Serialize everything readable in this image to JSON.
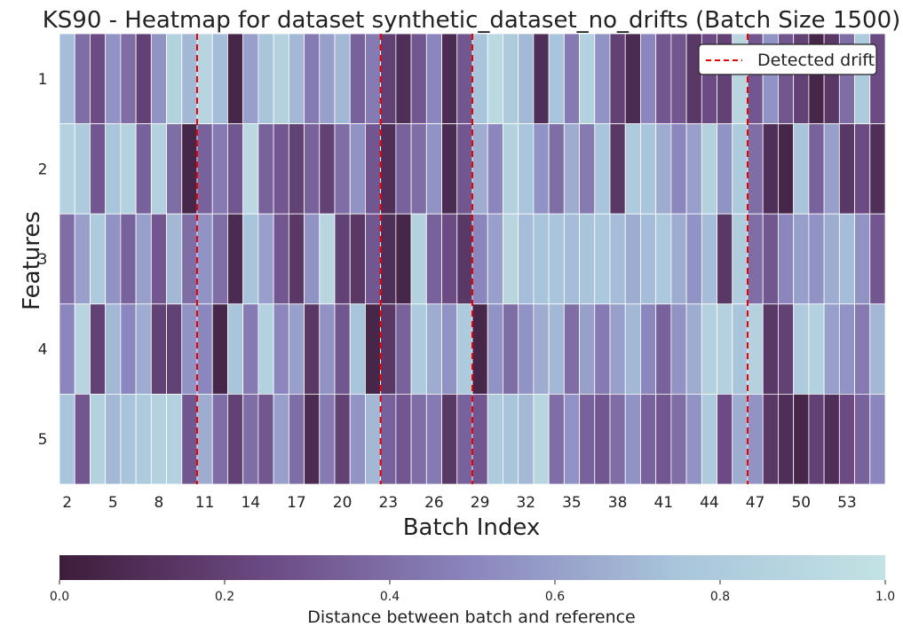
{
  "chart_data": {
    "type": "heatmap",
    "title": "KS90 - Heatmap for dataset synthetic_dataset_no_drifts (Batch Size 1500)",
    "xlabel": "Batch Index",
    "ylabel": "Features",
    "x_categories": [
      2,
      3,
      4,
      5,
      6,
      7,
      8,
      9,
      10,
      11,
      12,
      13,
      14,
      15,
      16,
      17,
      18,
      19,
      20,
      21,
      22,
      23,
      24,
      25,
      26,
      27,
      28,
      29,
      30,
      31,
      32,
      33,
      34,
      35,
      36,
      37,
      38,
      39,
      40,
      41,
      42,
      43,
      44,
      45,
      46,
      47,
      48,
      49,
      50,
      51,
      52,
      53,
      54,
      55
    ],
    "x_tick_labels": [
      "2",
      "5",
      "8",
      "11",
      "14",
      "17",
      "20",
      "23",
      "26",
      "29",
      "32",
      "35",
      "38",
      "41",
      "44",
      "47",
      "50",
      "53"
    ],
    "y_categories": [
      "1",
      "2",
      "3",
      "4",
      "5"
    ],
    "values": [
      [
        0.72,
        0.4,
        0.25,
        0.55,
        0.4,
        0.2,
        0.55,
        0.85,
        0.7,
        0.88,
        0.72,
        0.05,
        0.6,
        0.75,
        0.85,
        0.7,
        0.45,
        0.6,
        0.7,
        0.35,
        0.45,
        0.2,
        0.1,
        0.3,
        0.5,
        0.08,
        0.3,
        0.75,
        0.92,
        0.8,
        0.7,
        0.1,
        0.75,
        0.45,
        0.85,
        0.55,
        0.2,
        0.08,
        0.5,
        0.3,
        0.3,
        0.15,
        0.25,
        0.2,
        0.9,
        0.3,
        0.55,
        0.3,
        0.2,
        0.05,
        0.15,
        0.4,
        0.8,
        0.25
      ],
      [
        0.85,
        0.8,
        0.3,
        0.75,
        0.85,
        0.35,
        0.85,
        0.4,
        0.05,
        0.35,
        0.45,
        0.3,
        0.92,
        0.35,
        0.3,
        0.2,
        0.35,
        0.2,
        0.4,
        0.55,
        0.3,
        0.1,
        0.35,
        0.4,
        0.55,
        0.08,
        0.3,
        0.65,
        0.5,
        0.85,
        0.75,
        0.55,
        0.4,
        0.65,
        0.45,
        0.75,
        0.15,
        0.8,
        0.75,
        0.65,
        0.5,
        0.6,
        0.85,
        0.55,
        0.8,
        0.4,
        0.1,
        0.05,
        0.75,
        0.35,
        0.6,
        0.15,
        0.25,
        0.1
      ],
      [
        0.4,
        0.6,
        0.8,
        0.55,
        0.35,
        0.6,
        0.3,
        0.7,
        0.4,
        0.55,
        0.4,
        0.08,
        0.75,
        0.6,
        0.3,
        0.15,
        0.55,
        0.9,
        0.2,
        0.15,
        0.3,
        0.1,
        0.05,
        0.85,
        0.35,
        0.25,
        0.15,
        0.5,
        0.6,
        0.9,
        0.72,
        0.75,
        0.75,
        0.72,
        0.75,
        0.78,
        0.72,
        0.65,
        0.72,
        0.78,
        0.65,
        0.55,
        0.72,
        0.15,
        0.82,
        0.4,
        0.3,
        0.5,
        0.6,
        0.55,
        0.65,
        0.72,
        0.55,
        0.3
      ],
      [
        0.5,
        0.88,
        0.2,
        0.7,
        0.5,
        0.65,
        0.2,
        0.2,
        0.55,
        0.5,
        0.05,
        0.75,
        0.45,
        0.85,
        0.5,
        0.6,
        0.15,
        0.55,
        0.3,
        0.75,
        0.05,
        0.15,
        0.35,
        0.8,
        0.65,
        0.55,
        0.8,
        0.05,
        0.55,
        0.4,
        0.55,
        0.65,
        0.7,
        0.4,
        0.6,
        0.45,
        0.6,
        0.7,
        0.5,
        0.35,
        0.55,
        0.65,
        0.85,
        0.85,
        0.75,
        0.85,
        0.15,
        0.2,
        0.8,
        0.85,
        0.6,
        0.55,
        0.45,
        0.7
      ],
      [
        0.75,
        0.3,
        0.85,
        0.7,
        0.75,
        0.8,
        0.85,
        0.85,
        0.3,
        0.65,
        0.4,
        0.2,
        0.4,
        0.3,
        0.6,
        0.4,
        0.08,
        0.45,
        0.2,
        0.55,
        0.7,
        0.35,
        0.3,
        0.4,
        0.45,
        0.15,
        0.35,
        0.3,
        0.8,
        0.75,
        0.7,
        0.9,
        0.4,
        0.55,
        0.35,
        0.3,
        0.4,
        0.55,
        0.35,
        0.3,
        0.4,
        0.55,
        0.8,
        0.25,
        0.65,
        0.55,
        0.15,
        0.1,
        0.05,
        0.2,
        0.1,
        0.25,
        0.35,
        0.5
      ]
    ],
    "drift_batches": [
      10.5,
      22.5,
      28.5,
      46.5
    ],
    "legend": {
      "label": "Detected drift",
      "position": "top-right"
    },
    "colorbar": {
      "label": "Distance between batch and reference",
      "range": [
        0.0,
        1.0
      ],
      "tick_labels": [
        "0.0",
        "0.2",
        "0.4",
        "0.6",
        "0.8",
        "1.0"
      ],
      "tick_values": [
        0.0,
        0.2,
        0.4,
        0.6,
        0.8,
        1.0
      ]
    },
    "colors": {
      "cmap_stops": [
        "#3c1d3a",
        "#6c4a83",
        "#8b86be",
        "#a9c5db",
        "#c3e2e4"
      ],
      "drift_line": "#ee0000"
    }
  }
}
